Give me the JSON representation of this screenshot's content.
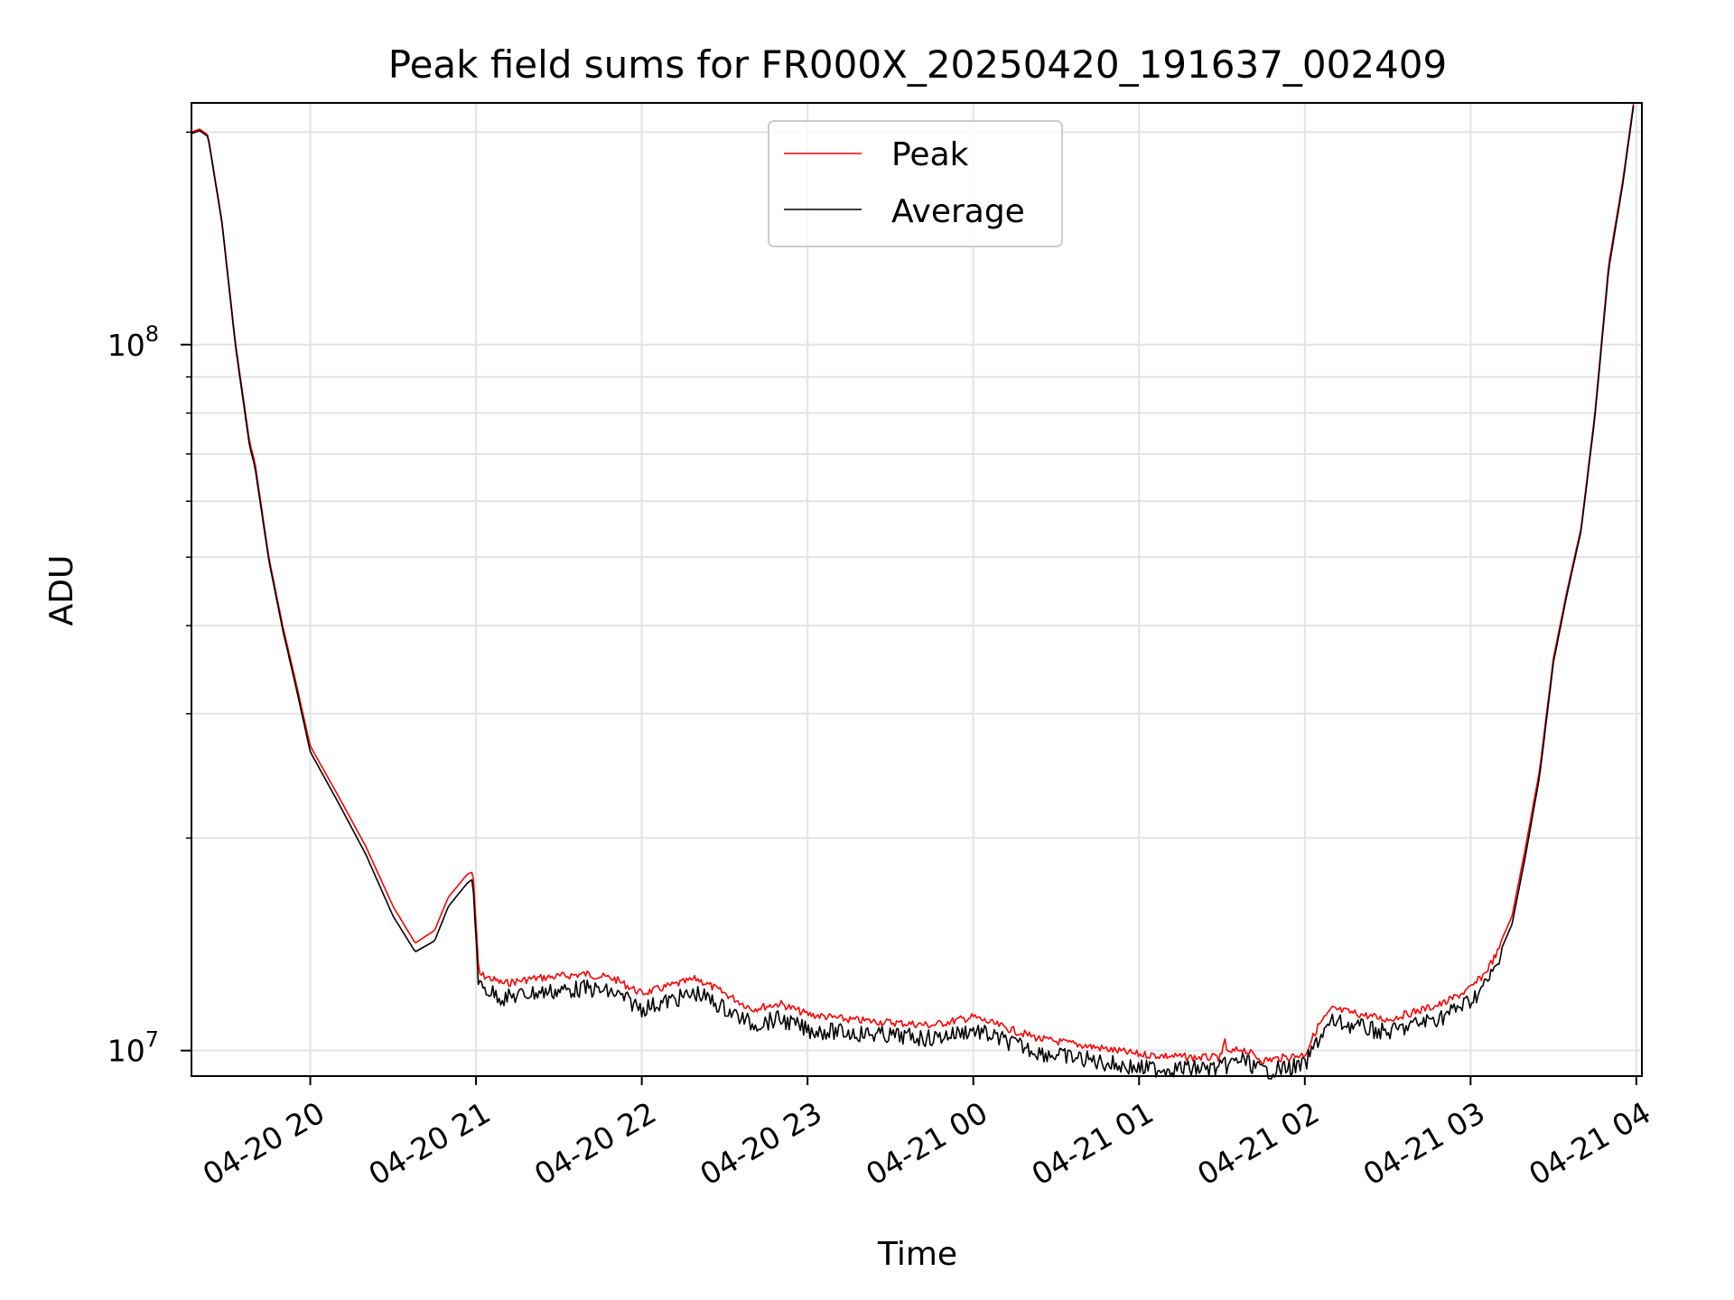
{
  "chart_data": {
    "type": "line",
    "title": "Peak field sums for FR000X_20250420_191637_002409",
    "xlabel": "Time",
    "ylabel": "ADU",
    "x_start": "2025-04-20 19:17",
    "x_end": "2025-04-21 03:59",
    "xlim": [
      "2025-04-20 19:17",
      "2025-04-21 04:02"
    ],
    "ylim": [
      9200000,
      220000000
    ],
    "yscale": "log",
    "grid": true,
    "legend_position": "top-center",
    "xticks": [
      "04-20 20",
      "04-20 21",
      "04-20 22",
      "04-20 23",
      "04-21 00",
      "04-21 01",
      "04-21 02",
      "04-21 03",
      "04-21 04"
    ],
    "yticks": [
      {
        "value": 10000000,
        "base": "10",
        "exp": "7"
      },
      {
        "value": 100000000,
        "base": "10",
        "exp": "8"
      }
    ],
    "series": [
      {
        "name": "Peak",
        "color": "#ff0000",
        "x": [
          "2025-04-20 19:17",
          "2025-04-20 19:20",
          "2025-04-20 19:23",
          "2025-04-20 19:28",
          "2025-04-20 19:33",
          "2025-04-20 19:38",
          "2025-04-20 19:40",
          "2025-04-20 19:45",
          "2025-04-20 19:50",
          "2025-04-20 19:55",
          "2025-04-20 20:00",
          "2025-04-20 20:10",
          "2025-04-20 20:20",
          "2025-04-20 20:30",
          "2025-04-20 20:38",
          "2025-04-20 20:45",
          "2025-04-20 20:50",
          "2025-04-20 20:57",
          "2025-04-20 20:59",
          "2025-04-20 21:01",
          "2025-04-20 21:10",
          "2025-04-20 21:20",
          "2025-04-20 21:30",
          "2025-04-20 21:40",
          "2025-04-20 21:50",
          "2025-04-20 22:00",
          "2025-04-20 22:10",
          "2025-04-20 22:20",
          "2025-04-20 22:30",
          "2025-04-20 22:40",
          "2025-04-20 22:50",
          "2025-04-20 23:00",
          "2025-04-20 23:15",
          "2025-04-20 23:30",
          "2025-04-20 23:45",
          "2025-04-21 00:00",
          "2025-04-21 00:15",
          "2025-04-21 00:25",
          "2025-04-21 00:40",
          "2025-04-21 01:00",
          "2025-04-21 01:20",
          "2025-04-21 01:30",
          "2025-04-21 01:31",
          "2025-04-21 01:32",
          "2025-04-21 01:37",
          "2025-04-21 01:45",
          "2025-04-21 02:00",
          "2025-04-21 02:05",
          "2025-04-21 02:10",
          "2025-04-21 02:20",
          "2025-04-21 02:30",
          "2025-04-21 02:40",
          "2025-04-21 02:50",
          "2025-04-21 03:00",
          "2025-04-21 03:05",
          "2025-04-21 03:10",
          "2025-04-21 03:15",
          "2025-04-21 03:20",
          "2025-04-21 03:25",
          "2025-04-21 03:30",
          "2025-04-21 03:35",
          "2025-04-21 03:40",
          "2025-04-21 03:45",
          "2025-04-21 03:50",
          "2025-04-21 03:55",
          "2025-04-21 03:59"
        ],
        "values": [
          200000000,
          202000000,
          198000000,
          150000000,
          100000000,
          73000000,
          68000000,
          50000000,
          40000000,
          33000000,
          27000000,
          23000000,
          19500000,
          16000000,
          14200000,
          14800000,
          16500000,
          17800000,
          17900000,
          13000000,
          12600000,
          12800000,
          12900000,
          13000000,
          12800000,
          12200000,
          12500000,
          12800000,
          12200000,
          11600000,
          11800000,
          11400000,
          11200000,
          11100000,
          11000000,
          11300000,
          10800000,
          10500000,
          10300000,
          10000000,
          9900000,
          9900000,
          10600000,
          10000000,
          10200000,
          9800000,
          10000000,
          11000000,
          11600000,
          11400000,
          11200000,
          11500000,
          11800000,
          12400000,
          13000000,
          14000000,
          15500000,
          19500000,
          25000000,
          36000000,
          45000000,
          55000000,
          80000000,
          130000000,
          170000000,
          220000000
        ]
      },
      {
        "name": "Average",
        "color": "#000000",
        "x": [
          "2025-04-20 19:17",
          "2025-04-20 19:20",
          "2025-04-20 19:23",
          "2025-04-20 19:28",
          "2025-04-20 19:33",
          "2025-04-20 19:38",
          "2025-04-20 19:40",
          "2025-04-20 19:45",
          "2025-04-20 19:50",
          "2025-04-20 19:55",
          "2025-04-20 20:00",
          "2025-04-20 20:10",
          "2025-04-20 20:20",
          "2025-04-20 20:30",
          "2025-04-20 20:38",
          "2025-04-20 20:45",
          "2025-04-20 20:50",
          "2025-04-20 20:57",
          "2025-04-20 20:59",
          "2025-04-20 21:01",
          "2025-04-20 21:10",
          "2025-04-20 21:20",
          "2025-04-20 21:30",
          "2025-04-20 21:40",
          "2025-04-20 21:50",
          "2025-04-20 22:00",
          "2025-04-20 22:10",
          "2025-04-20 22:20",
          "2025-04-20 22:30",
          "2025-04-20 22:40",
          "2025-04-20 22:50",
          "2025-04-20 23:00",
          "2025-04-20 23:15",
          "2025-04-20 23:30",
          "2025-04-20 23:45",
          "2025-04-21 00:00",
          "2025-04-21 00:15",
          "2025-04-21 00:25",
          "2025-04-21 00:40",
          "2025-04-21 01:00",
          "2025-04-21 01:20",
          "2025-04-21 01:30",
          "2025-04-21 01:31",
          "2025-04-21 01:32",
          "2025-04-21 01:37",
          "2025-04-21 01:45",
          "2025-04-21 02:00",
          "2025-04-21 02:05",
          "2025-04-21 02:10",
          "2025-04-21 02:20",
          "2025-04-21 02:30",
          "2025-04-21 02:40",
          "2025-04-21 02:50",
          "2025-04-21 03:00",
          "2025-04-21 03:05",
          "2025-04-21 03:10",
          "2025-04-21 03:15",
          "2025-04-21 03:20",
          "2025-04-21 03:25",
          "2025-04-21 03:30",
          "2025-04-21 03:35",
          "2025-04-21 03:40",
          "2025-04-21 03:45",
          "2025-04-21 03:50",
          "2025-04-21 03:55",
          "2025-04-21 03:59"
        ],
        "values": [
          199000000,
          201000000,
          197000000,
          149000000,
          99000000,
          72000000,
          67000000,
          49500000,
          39500000,
          32500000,
          26500000,
          22500000,
          19000000,
          15500000,
          13800000,
          14300000,
          16000000,
          17300000,
          17500000,
          12700000,
          12200000,
          12400000,
          12500000,
          12600000,
          12400000,
          11800000,
          12100000,
          12400000,
          11800000,
          11200000,
          11400000,
          11000000,
          10900000,
          10800000,
          10700000,
          11000000,
          10500000,
          10200000,
          10000000,
          9700000,
          9700000,
          9700000,
          9800000,
          9800000,
          10000000,
          9600000,
          9800000,
          10700000,
          11300000,
          11100000,
          10900000,
          11200000,
          11500000,
          12100000,
          12700000,
          13600000,
          15100000,
          19000000,
          24500000,
          35500000,
          44500000,
          54500000,
          79000000,
          128000000,
          168000000,
          218000000
        ]
      }
    ]
  }
}
